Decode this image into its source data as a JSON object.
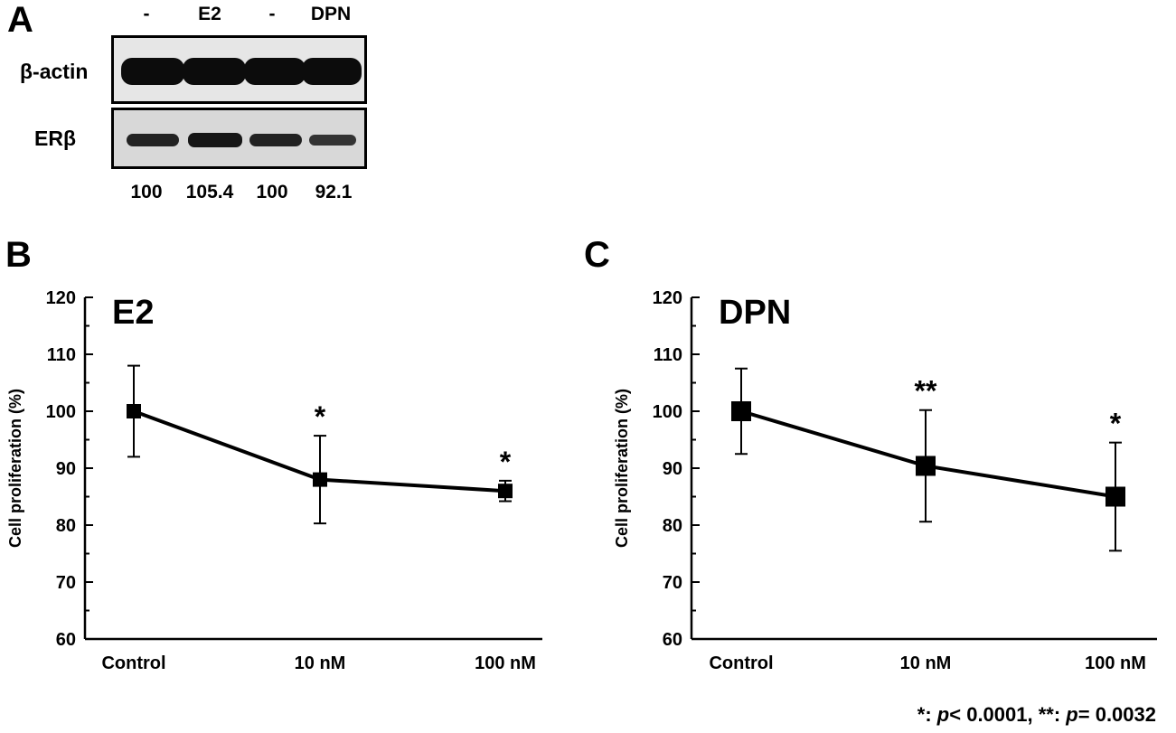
{
  "panels": {
    "a": "A",
    "b": "B",
    "c": "C"
  },
  "western_blot": {
    "lanes": [
      "-",
      "E2",
      "-",
      "DPN"
    ],
    "rows": [
      "β-actin",
      "ERβ"
    ],
    "quantification": [
      "100",
      "105.4",
      "100",
      "92.1"
    ]
  },
  "footnote": {
    "part1": "*: ",
    "p1": "p",
    "part2": "< 0.0001, **: ",
    "p2": "p",
    "part3": "= 0.0032"
  },
  "chart_data": [
    {
      "type": "line",
      "title": "E2",
      "xlabel": "",
      "ylabel": "Cell proliferation (%)",
      "categories": [
        "Control",
        "10 nM",
        "100 nM"
      ],
      "values": [
        100,
        88,
        86
      ],
      "error": [
        8,
        7.7,
        1.8
      ],
      "significance": [
        "",
        "*",
        "*"
      ],
      "ylim": [
        60,
        120
      ],
      "yticks": [
        60,
        70,
        80,
        90,
        100,
        110,
        120
      ]
    },
    {
      "type": "line",
      "title": "DPN",
      "xlabel": "",
      "ylabel": "Cell proliferation (%)",
      "categories": [
        "Control",
        "10 nM",
        "100 nM"
      ],
      "values": [
        100,
        90.4,
        85
      ],
      "error": [
        7.5,
        9.8,
        9.5
      ],
      "significance": [
        "",
        "**",
        "*"
      ],
      "ylim": [
        60,
        120
      ],
      "yticks": [
        60,
        70,
        80,
        90,
        100,
        110,
        120
      ]
    }
  ]
}
